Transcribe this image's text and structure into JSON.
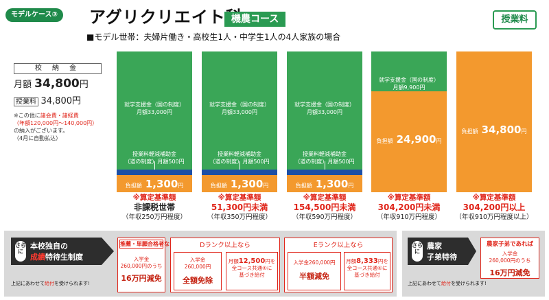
{
  "header": {
    "model_badge": "モデルケース③",
    "title": "アグリクリエイト科",
    "course_badge": "機農コース",
    "top_right_button": "授業料",
    "subtitle": "■モデル世帯：夫婦片働き・高校生1人・中学生1人の4人家族の場合"
  },
  "tuition": {
    "heading": "校 納 金",
    "monthly_prefix": "月額",
    "monthly_value": "34,800",
    "monthly_unit": "円",
    "fee_label": "授業料",
    "fee_value": "34,800円",
    "note_prefix": "※この他に",
    "note_red_1": "諸会費・諸経費",
    "note_red_2": "（年額120,000円～140,000円）",
    "note_suffix_1": "の納入がございます。",
    "note_suffix_2": "（4月に自動払込）"
  },
  "bars": [
    {
      "subsidy_state": "就学支援金（国の制度）",
      "subsidy_state_amount": "月額33,000円",
      "subsidy_local_1": "授業料軽減補助金",
      "subsidy_local_2": "（道の制度）月額500円",
      "pay_label": "負担額",
      "pay_value": "1,300",
      "pay_unit": "円",
      "criteria_label": "※算定基準額",
      "criteria_value": "非課税世帯",
      "income": "（年収250万円程度）"
    },
    {
      "subsidy_state": "就学支援金（国の制度）",
      "subsidy_state_amount": "月額33,000円",
      "subsidy_local_1": "授業料軽減補助金",
      "subsidy_local_2": "（道の制度）月額500円",
      "pay_label": "負担額",
      "pay_value": "1,300",
      "pay_unit": "円",
      "criteria_label": "※算定基準額",
      "criteria_value": "51,300円未満",
      "income": "（年収350万円程度）"
    },
    {
      "subsidy_state": "就学支援金（国の制度）",
      "subsidy_state_amount": "月額33,000円",
      "subsidy_local_1": "授業料軽減補助金",
      "subsidy_local_2": "（道の制度）月額500円",
      "pay_label": "負担額",
      "pay_value": "1,300",
      "pay_unit": "円",
      "criteria_label": "※算定基準額",
      "criteria_value": "154,500円未満",
      "income": "（年収590万円程度）"
    },
    {
      "subsidy_state": "就学支援金（国の制度）",
      "subsidy_state_amount": "月額9,900円",
      "pay_label": "負担額",
      "pay_value": "24,900",
      "pay_unit": "円",
      "criteria_label": "※算定基準額",
      "criteria_value": "304,200円未満",
      "income": "（年収910万円程度）"
    },
    {
      "pay_label": "負担額",
      "pay_value": "34,800",
      "pay_unit": "円",
      "criteria_label": "※算定基準額",
      "criteria_value": "304,200円以上",
      "income": "（年収910万円程度以上）"
    }
  ],
  "colors": {
    "state_subsidy": "#3aa657",
    "local_subsidy": "#1d4fa5",
    "payment": "#f3992e",
    "accent_red": "#e0261b",
    "brand_green": "#1f8a4a"
  },
  "scholarship_panel": {
    "sarani": "さらに",
    "title_1": "本校独自の",
    "title_2_red": "成績",
    "title_2_rest": "特待生制度",
    "note_prefix": "上記にあわせて",
    "note_red": "給付",
    "note_suffix": "を受けられます!",
    "boxes": [
      {
        "title": "推薦・単願合格者なら",
        "line1": "入学金",
        "line2": "260,000円のうち",
        "big": "16万円減免"
      },
      {
        "title": "Dランク以上なら",
        "line1": "入学金",
        "line2": "260,000円",
        "big": "全額免除",
        "inner_1": "月額",
        "inner_value": "12,500",
        "inner_2": "円を",
        "inner_3": "全コース共通④に",
        "inner_4": "基づき給付"
      },
      {
        "title": "Eランク以上なら",
        "line1": "入学金260,000円",
        "big": "半額減免",
        "inner_1": "月額",
        "inner_value": "8,333",
        "inner_2": "円を",
        "inner_3": "全コース共通④に",
        "inner_4": "基づき給付"
      }
    ]
  },
  "farm_panel": {
    "sarani": "さらに",
    "title_1": "農家",
    "title_2": "子弟特待",
    "box_title": "農家子弟であれば",
    "line1": "入学金",
    "line2": "260,000円のうち",
    "big": "16万円減免",
    "note_prefix": "上記にあわせて",
    "note_red": "給付",
    "note_suffix": "を受けられます!"
  }
}
